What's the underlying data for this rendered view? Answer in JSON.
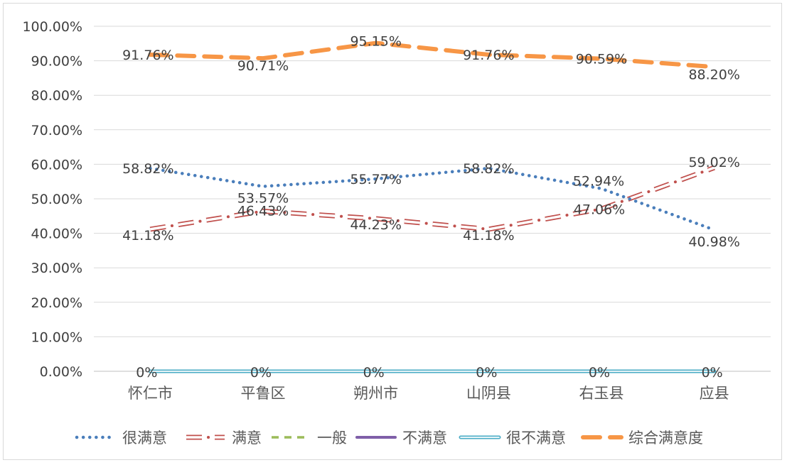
{
  "chart_data": {
    "type": "line",
    "categories": [
      "怀仁市",
      "平鲁区",
      "朔州市",
      "山阴县",
      "右玉县",
      "应县"
    ],
    "ylim": [
      0,
      100
    ],
    "y_ticks": [
      "0.00%",
      "10.00%",
      "20.00%",
      "30.00%",
      "40.00%",
      "50.00%",
      "60.00%",
      "70.00%",
      "80.00%",
      "90.00%",
      "100.00%"
    ],
    "grid": true,
    "legend_position": "bottom",
    "series": [
      {
        "name": "很满意",
        "values": [
          58.82,
          53.57,
          55.77,
          58.82,
          52.94,
          40.98
        ],
        "labels": [
          "58.82%",
          "53.57%",
          "55.77%",
          "58.82%",
          "52.94%",
          "40.98%"
        ],
        "color": "#4a7ebb",
        "style": "dotted"
      },
      {
        "name": "满意",
        "values": [
          41.18,
          46.43,
          44.23,
          41.18,
          47.06,
          59.02
        ],
        "labels": [
          "41.18%",
          "46.43%",
          "44.23%",
          "41.18%",
          "47.06%",
          "59.02%"
        ],
        "color": "#c0504d",
        "style": "dash-dot-hollow"
      },
      {
        "name": "一般",
        "values": [
          0,
          0,
          0,
          0,
          0,
          0
        ],
        "labels": [
          "",
          "",
          "",
          "",
          "",
          ""
        ],
        "color": "#9bbb59",
        "style": "dashed"
      },
      {
        "name": "不满意",
        "values": [
          0,
          0,
          0,
          0,
          0,
          0
        ],
        "labels": [
          "",
          "",
          "",
          "",
          "",
          ""
        ],
        "color": "#7f5fa8",
        "style": "solid"
      },
      {
        "name": "很不满意",
        "values": [
          0,
          0,
          0,
          0,
          0,
          0
        ],
        "labels": [
          "0%",
          "0%",
          "0%",
          "0%",
          "0%",
          "0%"
        ],
        "color": "#4bacc6",
        "style": "double"
      },
      {
        "name": "综合满意度",
        "values": [
          91.76,
          90.71,
          95.15,
          91.76,
          90.59,
          88.2
        ],
        "labels": [
          "91.76%",
          "90.71%",
          "95.15%",
          "91.76%",
          "90.59%",
          "88.20%"
        ],
        "color": "#f79646",
        "style": "long-dash"
      }
    ]
  }
}
